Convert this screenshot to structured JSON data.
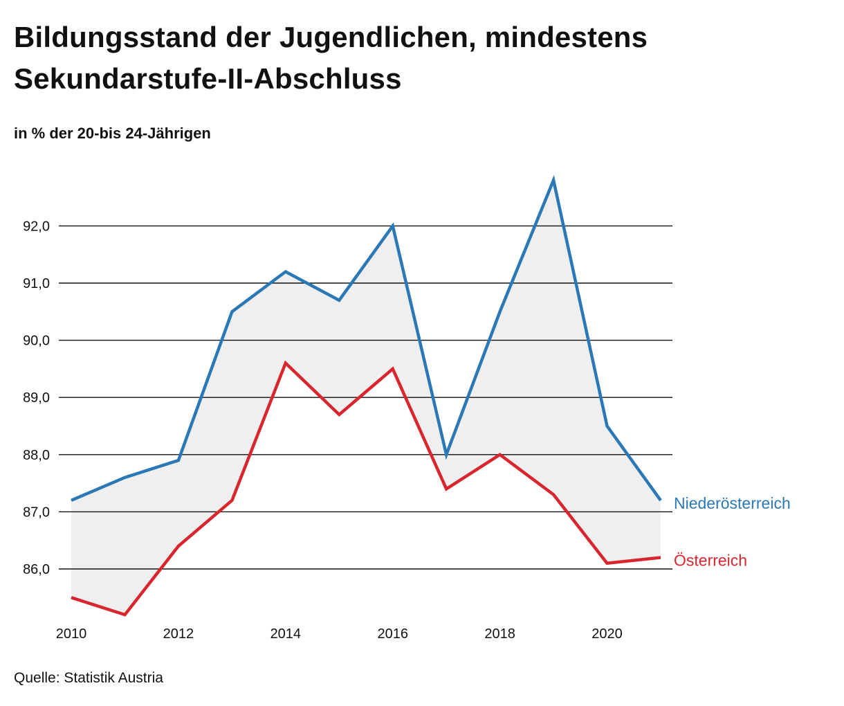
{
  "chart_data": {
    "type": "line",
    "title": "Bildungsstand der Jugendlichen, mindestens Sekundarstufe-II-Abschluss",
    "subtitle": "in % der 20-bis 24-Jährigen",
    "source": "Quelle: Statistik Austria",
    "x": [
      2010,
      2011,
      2012,
      2013,
      2014,
      2015,
      2016,
      2017,
      2018,
      2019,
      2020,
      2021
    ],
    "x_tick_values": [
      2010,
      2012,
      2014,
      2016,
      2018,
      2020
    ],
    "x_tick_labels": [
      "2010",
      "2012",
      "2014",
      "2016",
      "2018",
      "2020"
    ],
    "y_tick_values": [
      86,
      87,
      88,
      89,
      90,
      91,
      92
    ],
    "y_tick_labels": [
      "86,0",
      "87,0",
      "88,0",
      "89,0",
      "90,0",
      "91,0",
      "92,0"
    ],
    "xlim": [
      2010,
      2021
    ],
    "ylim": [
      85.1,
      93.2
    ],
    "grid": "horizontal",
    "fill_between_series": true,
    "fill_color": "#efefef",
    "legend": "direct labels at line ends (right)",
    "series": [
      {
        "name": "Niederösterreich",
        "color": "#2a78b6",
        "values": [
          87.2,
          87.6,
          87.9,
          90.5,
          91.2,
          90.7,
          92.0,
          88.0,
          90.5,
          92.8,
          88.5,
          87.2
        ]
      },
      {
        "name": "Österreich",
        "color": "#d9262e",
        "values": [
          85.5,
          85.2,
          86.4,
          87.2,
          89.6,
          88.7,
          89.5,
          87.4,
          88.0,
          87.3,
          86.1,
          86.2
        ]
      }
    ]
  }
}
